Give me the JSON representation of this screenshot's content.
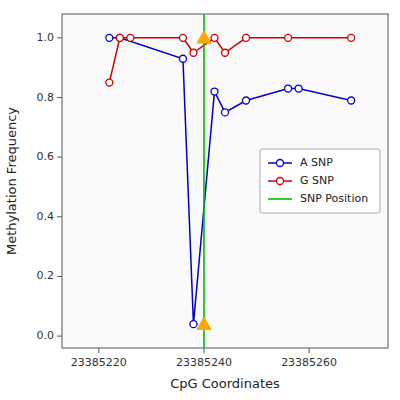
{
  "chart_data": {
    "type": "line",
    "xlabel": "CpG Coordinates",
    "ylabel": "Methylation Frequency",
    "series": [
      {
        "name": "A SNP",
        "color": "#0000CC",
        "marker": "circle",
        "line_style": "solid",
        "x": [
          23385222,
          23385224,
          23385236,
          23385238,
          23385242,
          23385244,
          23385248,
          23385256,
          23385258,
          23385268
        ],
        "values": [
          1.0,
          1.0,
          0.93,
          0.04,
          0.82,
          0.75,
          0.79,
          0.83,
          0.83,
          0.79
        ]
      },
      {
        "name": "G SNP",
        "color": "#CC0000",
        "marker": "circle",
        "line_style": "solid",
        "x": [
          23385222,
          23385224,
          23385226,
          23385236,
          23385238,
          23385242,
          23385244,
          23385248,
          23385256,
          23385268
        ],
        "values": [
          0.85,
          1.0,
          1.0,
          1.0,
          0.95,
          1.0,
          0.95,
          1.0,
          1.0,
          1.0
        ]
      },
      {
        "name": "SNP Position",
        "type": "vline",
        "color": "#00BB00",
        "line_style": "solid",
        "x": [
          23385240
        ]
      },
      {
        "type": "scatter",
        "color": "#FFA500",
        "marker": "triangle",
        "line_style": "none",
        "x": [
          23385240,
          23385240
        ],
        "values": [
          0.04,
          1.0
        ]
      }
    ],
    "xlim": [
      23385213,
      23385275
    ],
    "ylim": [
      -0.04,
      1.08
    ],
    "xticks": [
      23385220,
      23385240,
      23385260
    ],
    "yticks": [
      {
        "value": 0,
        "label": "0.0"
      },
      0.2,
      0.4,
      0.6,
      0.8,
      {
        "value": 1,
        "label": "1.0"
      }
    ],
    "grid": false,
    "legend": "center right"
  }
}
